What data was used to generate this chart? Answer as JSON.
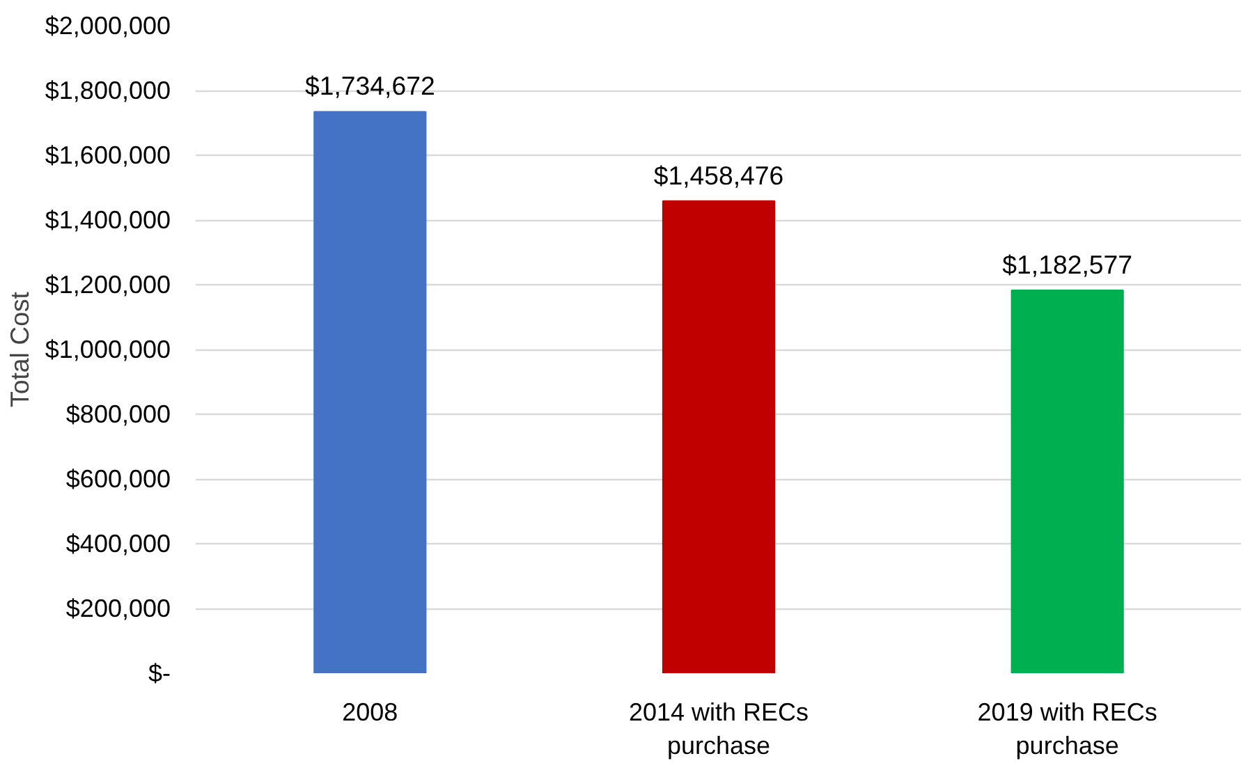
{
  "chart_data": {
    "type": "bar",
    "ylabel": "Total Cost",
    "categories": [
      "2008",
      "2014 with RECs purchase",
      "2019 with RECs purchase"
    ],
    "values": [
      1734672,
      1458476,
      1182577
    ],
    "colors": [
      "#4472c4",
      "#c00000",
      "#00b050"
    ],
    "value_labels": [
      "$1,734,672",
      "$1,458,476",
      "$1,182,577"
    ],
    "ylim": [
      0,
      2000000
    ],
    "yticks": [
      {
        "value": 0,
        "label": "$-"
      },
      {
        "value": 200000,
        "label": "$200,000"
      },
      {
        "value": 400000,
        "label": "$400,000"
      },
      {
        "value": 600000,
        "label": "$600,000"
      },
      {
        "value": 800000,
        "label": "$800,000"
      },
      {
        "value": 1000000,
        "label": "$1,000,000"
      },
      {
        "value": 1200000,
        "label": "$1,200,000"
      },
      {
        "value": 1400000,
        "label": "$1,400,000"
      },
      {
        "value": 1600000,
        "label": "$1,600,000"
      },
      {
        "value": 1800000,
        "label": "$1,800,000"
      },
      {
        "value": 2000000,
        "label": "$2,000,000"
      }
    ],
    "grid": "y"
  }
}
